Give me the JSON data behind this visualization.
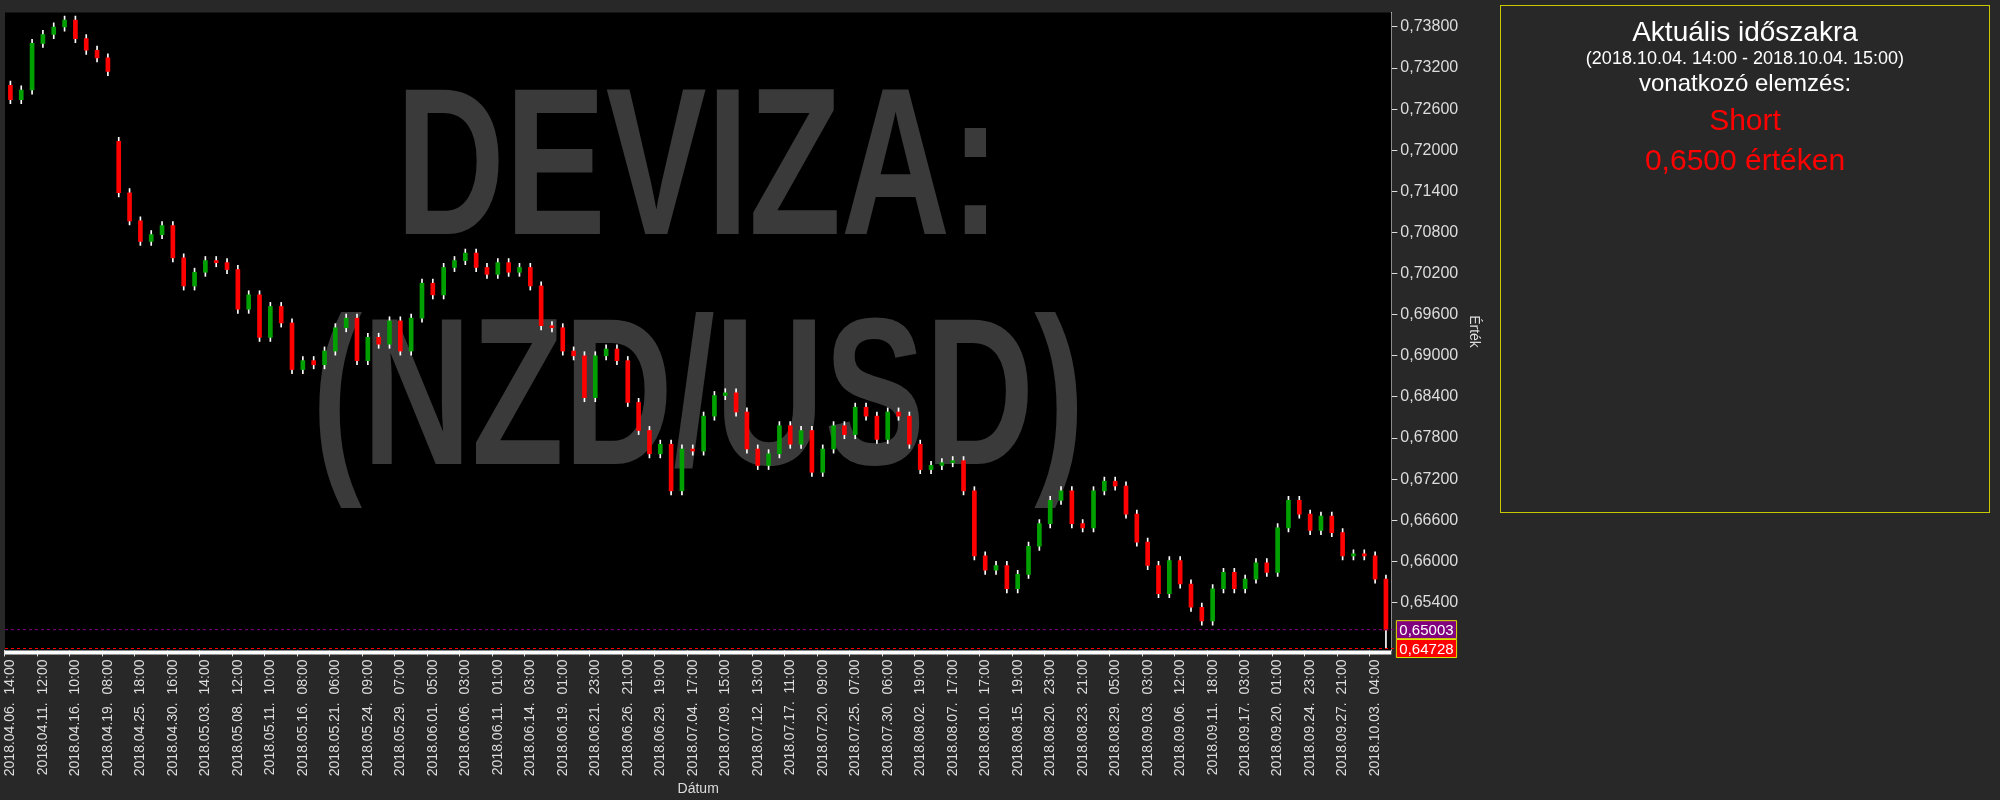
{
  "chart_data": [
    {
      "type": "candlestick",
      "title": "DEVIZA: (NZD/USD)",
      "xlabel": "Dátum",
      "ylabel": "Érték",
      "categories": [
        "2018.04.06.  14:00",
        null,
        null,
        "2018.04.11.  12:00",
        null,
        null,
        "2018.04.16.  10:00",
        null,
        null,
        "2018.04.19.  08:00",
        null,
        null,
        "2018.04.25.  18:00",
        null,
        null,
        "2018.04.30.  16:00",
        null,
        null,
        "2018.05.03.  14:00",
        null,
        null,
        "2018.05.08.  12:00",
        null,
        null,
        "2018.05.11.  10:00",
        null,
        null,
        "2018.05.16.  08:00",
        null,
        null,
        "2018.05.21.  06:00",
        null,
        null,
        "2018.05.24.  09:00",
        null,
        null,
        "2018.05.29.  07:00",
        null,
        null,
        "2018.06.01.  05:00",
        null,
        null,
        "2018.06.06.  03:00",
        null,
        null,
        "2018.06.11.  01:00",
        null,
        null,
        "2018.06.14.  03:00",
        null,
        null,
        "2018.06.19.  01:00",
        null,
        null,
        "2018.06.21.  23:00",
        null,
        null,
        "2018.06.26.  21:00",
        null,
        null,
        "2018.06.29.  19:00",
        null,
        null,
        "2018.07.04.  17:00",
        null,
        null,
        "2018.07.09.  15:00",
        null,
        null,
        "2018.07.12.  13:00",
        null,
        null,
        "2018.07.17.  11:00",
        null,
        null,
        "2018.07.20.  09:00",
        null,
        null,
        "2018.07.25.  07:00",
        null,
        null,
        "2018.07.30.  06:00",
        null,
        null,
        "2018.08.02.  19:00",
        null,
        null,
        "2018.08.07.  17:00",
        null,
        null,
        "2018.08.10.  17:00",
        null,
        null,
        "2018.08.15.  19:00",
        null,
        null,
        "2018.08.20.  23:00",
        null,
        null,
        "2018.08.23.  21:00",
        null,
        null,
        "2018.08.29.  05:00",
        null,
        null,
        "2018.09.03.  03:00",
        null,
        null,
        "2018.09.06.  12:00",
        null,
        null,
        "2018.09.11.  18:00",
        null,
        null,
        "2018.09.17.  03:00",
        null,
        null,
        "2018.09.20.  01:00",
        null,
        null,
        "2018.09.24.  23:00",
        null,
        null,
        "2018.09.27.  21:00",
        null,
        null,
        "2018.10.03.  04:00",
        null
      ],
      "colors": [
        "#ff0000",
        "#00a000",
        "#00a000",
        "#00a000",
        "#00a000",
        "#00a000",
        "#ff0000",
        "#ff0000",
        "#ff0000",
        "#ff0000",
        "#ff0000",
        "#ff0000",
        "#ff0000",
        "#00a000",
        "#00a000",
        "#ff0000",
        "#ff0000",
        "#00a000",
        "#00a000",
        "#ff0000",
        "#ff0000",
        "#ff0000",
        "#00a000",
        "#ff0000",
        "#00a000",
        "#ff0000",
        "#ff0000",
        "#00a000",
        "#ff0000",
        "#00a000",
        "#00a000",
        "#00a000",
        "#ff0000",
        "#00a000",
        "#ff0000",
        "#00a000",
        "#ff0000",
        "#00a000",
        "#00a000",
        "#ff0000",
        "#00a000",
        "#00a000",
        "#00a000",
        "#ff0000",
        "#ff0000",
        "#00a000",
        "#ff0000",
        "#00a000",
        "#ff0000",
        "#ff0000",
        "#ff0000",
        "#ff0000",
        "#ff0000",
        "#ff0000",
        "#00a000",
        "#00a000",
        "#ff0000",
        "#ff0000",
        "#ff0000",
        "#ff0000",
        "#00a000",
        "#ff0000",
        "#00a000",
        "#ff0000",
        "#00a000",
        "#00a000",
        "#00a000",
        "#ff0000",
        "#ff0000",
        "#ff0000",
        "#00a000",
        "#00a000",
        "#ff0000",
        "#00a000",
        "#ff0000",
        "#00a000",
        "#00a000",
        "#ff0000",
        "#00a000",
        "#ff0000",
        "#ff0000",
        "#00a000",
        "#ff0000",
        "#ff0000",
        "#ff0000",
        "#00a000",
        "#00a000",
        "#00a000",
        "#ff0000",
        "#ff0000",
        "#ff0000",
        "#00a000",
        "#ff0000",
        "#00a000",
        "#00a000",
        "#00a000",
        "#00a000",
        "#00a000",
        "#ff0000",
        "#ff0000",
        "#00a000",
        "#00a000",
        "#ff0000",
        "#ff0000",
        "#ff0000",
        "#ff0000",
        "#ff0000",
        "#00a000",
        "#ff0000",
        "#ff0000",
        "#ff0000",
        "#00a000",
        "#00a000",
        "#ff0000",
        "#00a000",
        "#00a000",
        "#ff0000",
        "#00a000",
        "#00a000",
        "#ff0000",
        "#ff0000",
        "#00a000",
        "#ff0000",
        "#ff0000",
        "#00a000",
        "#ff0000",
        "#ff0000",
        "#ff0000"
      ],
      "color": "#ffffff",
      "ohlc": [
        [
          0.7295,
          0.7301,
          0.7268,
          0.7274
        ],
        [
          0.7274,
          0.7294,
          0.7268,
          0.7288
        ],
        [
          0.7288,
          0.7362,
          0.7282,
          0.7356
        ],
        [
          0.7356,
          0.7375,
          0.735,
          0.7369
        ],
        [
          0.7369,
          0.7386,
          0.7363,
          0.738
        ],
        [
          0.738,
          0.7396,
          0.7374,
          0.739
        ],
        [
          0.739,
          0.7396,
          0.7357,
          0.7363
        ],
        [
          0.7363,
          0.7369,
          0.734,
          0.7346
        ],
        [
          0.7346,
          0.7352,
          0.7329,
          0.7335
        ],
        [
          0.7335,
          0.7341,
          0.7309,
          0.7315
        ],
        [
          0.7213,
          0.7219,
          0.7132,
          0.7138
        ],
        [
          0.7138,
          0.7144,
          0.7091,
          0.7097
        ],
        [
          0.7097,
          0.7103,
          0.7061,
          0.7067
        ],
        [
          0.7067,
          0.7083,
          0.7061,
          0.7077
        ],
        [
          0.7077,
          0.7096,
          0.7071,
          0.709
        ],
        [
          0.709,
          0.7096,
          0.7037,
          0.7043
        ],
        [
          0.7043,
          0.7049,
          0.6996,
          0.7002
        ],
        [
          0.7002,
          0.7028,
          0.6996,
          0.7022
        ],
        [
          0.7022,
          0.7045,
          0.7016,
          0.7039
        ],
        [
          0.7039,
          0.7045,
          0.703,
          0.7036
        ],
        [
          0.7036,
          0.7042,
          0.702,
          0.7026
        ],
        [
          0.7026,
          0.7032,
          0.6962,
          0.6968
        ],
        [
          0.6968,
          0.6995,
          0.6962,
          0.6989
        ],
        [
          0.6989,
          0.6995,
          0.6921,
          0.6927
        ],
        [
          0.6927,
          0.6978,
          0.6921,
          0.6972
        ],
        [
          0.6972,
          0.6978,
          0.6942,
          0.6948
        ],
        [
          0.6948,
          0.6954,
          0.6874,
          0.688
        ],
        [
          0.688,
          0.6899,
          0.6874,
          0.6893
        ],
        [
          0.6893,
          0.6899,
          0.6881,
          0.6887
        ],
        [
          0.6887,
          0.6913,
          0.6881,
          0.6907
        ],
        [
          0.6907,
          0.6947,
          0.6901,
          0.6941
        ],
        [
          0.6941,
          0.6961,
          0.6935,
          0.6955
        ],
        [
          0.6955,
          0.6961,
          0.6887,
          0.6893
        ],
        [
          0.6893,
          0.6933,
          0.6887,
          0.6927
        ],
        [
          0.6927,
          0.6933,
          0.6911,
          0.6917
        ],
        [
          0.6917,
          0.6957,
          0.6911,
          0.6951
        ],
        [
          0.6951,
          0.6957,
          0.6901,
          0.6907
        ],
        [
          0.6907,
          0.6961,
          0.6901,
          0.6955
        ],
        [
          0.6955,
          0.7012,
          0.6949,
          0.7006
        ],
        [
          0.7006,
          0.7012,
          0.6983,
          0.6989
        ],
        [
          0.6989,
          0.7035,
          0.6983,
          0.7029
        ],
        [
          0.7029,
          0.7045,
          0.7023,
          0.7039
        ],
        [
          0.7039,
          0.7056,
          0.7033,
          0.705
        ],
        [
          0.705,
          0.7056,
          0.7023,
          0.7029
        ],
        [
          0.7029,
          0.7035,
          0.7013,
          0.7019
        ],
        [
          0.7019,
          0.7042,
          0.7013,
          0.7036
        ],
        [
          0.7036,
          0.7042,
          0.7016,
          0.7022
        ],
        [
          0.7022,
          0.7035,
          0.7016,
          0.7029
        ],
        [
          0.7029,
          0.7035,
          0.6996,
          0.7002
        ],
        [
          0.7002,
          0.7008,
          0.6938,
          0.6944
        ],
        [
          0.6944,
          0.695,
          0.6935,
          0.6941
        ],
        [
          0.6941,
          0.6947,
          0.6901,
          0.6907
        ],
        [
          0.6907,
          0.6913,
          0.6894,
          0.69
        ],
        [
          0.69,
          0.6906,
          0.6833,
          0.6839
        ],
        [
          0.6839,
          0.6906,
          0.6833,
          0.69
        ],
        [
          0.69,
          0.6916,
          0.6894,
          0.691
        ],
        [
          0.691,
          0.6916,
          0.6887,
          0.6893
        ],
        [
          0.6893,
          0.6899,
          0.6826,
          0.6832
        ],
        [
          0.6832,
          0.6838,
          0.6785,
          0.6791
        ],
        [
          0.6791,
          0.6797,
          0.6751,
          0.6757
        ],
        [
          0.6757,
          0.6777,
          0.6751,
          0.6771
        ],
        [
          0.6771,
          0.6777,
          0.6697,
          0.6703
        ],
        [
          0.6703,
          0.677,
          0.6697,
          0.6764
        ],
        [
          0.6764,
          0.677,
          0.6755,
          0.6761
        ],
        [
          0.6761,
          0.6818,
          0.6755,
          0.6812
        ],
        [
          0.6812,
          0.6848,
          0.6806,
          0.6842
        ],
        [
          0.6842,
          0.6852,
          0.6836,
          0.6846
        ],
        [
          0.6846,
          0.6852,
          0.6812,
          0.6818
        ],
        [
          0.6818,
          0.6824,
          0.6758,
          0.6764
        ],
        [
          0.6764,
          0.677,
          0.6734,
          0.674
        ],
        [
          0.674,
          0.6763,
          0.6734,
          0.6757
        ],
        [
          0.6757,
          0.6804,
          0.6751,
          0.6798
        ],
        [
          0.6798,
          0.6804,
          0.6765,
          0.6771
        ],
        [
          0.6771,
          0.6797,
          0.6765,
          0.6791
        ],
        [
          0.6791,
          0.6797,
          0.6724,
          0.673
        ],
        [
          0.673,
          0.677,
          0.6724,
          0.6764
        ],
        [
          0.6764,
          0.6804,
          0.6758,
          0.6798
        ],
        [
          0.6798,
          0.6804,
          0.6779,
          0.6785
        ],
        [
          0.6785,
          0.6831,
          0.6779,
          0.6825
        ],
        [
          0.6825,
          0.6831,
          0.6806,
          0.6812
        ],
        [
          0.6812,
          0.6818,
          0.6772,
          0.6778
        ],
        [
          0.6778,
          0.6824,
          0.6772,
          0.6818
        ],
        [
          0.6818,
          0.6824,
          0.6806,
          0.6812
        ],
        [
          0.6812,
          0.6818,
          0.6765,
          0.6771
        ],
        [
          0.6771,
          0.6777,
          0.6728,
          0.6734
        ],
        [
          0.6734,
          0.6746,
          0.6728,
          0.674
        ],
        [
          0.674,
          0.675,
          0.6734,
          0.6744
        ],
        [
          0.6744,
          0.6753,
          0.6738,
          0.6747
        ],
        [
          0.6747,
          0.6753,
          0.6697,
          0.6703
        ],
        [
          0.6703,
          0.6709,
          0.6602,
          0.6608
        ],
        [
          0.6608,
          0.6614,
          0.6581,
          0.6587
        ],
        [
          0.6587,
          0.66,
          0.6581,
          0.6594
        ],
        [
          0.6594,
          0.66,
          0.6554,
          0.656
        ],
        [
          0.656,
          0.6587,
          0.6554,
          0.6581
        ],
        [
          0.6581,
          0.6628,
          0.6575,
          0.6622
        ],
        [
          0.6622,
          0.6661,
          0.6616,
          0.6655
        ],
        [
          0.6655,
          0.6695,
          0.6649,
          0.6689
        ],
        [
          0.6689,
          0.6709,
          0.6683,
          0.6703
        ],
        [
          0.6703,
          0.6709,
          0.6649,
          0.6655
        ],
        [
          0.6655,
          0.6661,
          0.6643,
          0.6649
        ],
        [
          0.6649,
          0.6709,
          0.6643,
          0.6703
        ],
        [
          0.6703,
          0.6723,
          0.6697,
          0.6717
        ],
        [
          0.6717,
          0.6723,
          0.6704,
          0.671
        ],
        [
          0.671,
          0.6716,
          0.6663,
          0.6669
        ],
        [
          0.6669,
          0.6675,
          0.6622,
          0.6628
        ],
        [
          0.6628,
          0.6634,
          0.6588,
          0.6594
        ],
        [
          0.6594,
          0.66,
          0.6547,
          0.6553
        ],
        [
          0.6553,
          0.6607,
          0.6547,
          0.6601
        ],
        [
          0.6601,
          0.6607,
          0.6561,
          0.6567
        ],
        [
          0.6567,
          0.6573,
          0.6527,
          0.6533
        ],
        [
          0.6533,
          0.6539,
          0.6507,
          0.6513
        ],
        [
          0.6513,
          0.6566,
          0.6507,
          0.656
        ],
        [
          0.656,
          0.659,
          0.6554,
          0.6584
        ],
        [
          0.6584,
          0.659,
          0.6554,
          0.656
        ],
        [
          0.656,
          0.658,
          0.6554,
          0.6574
        ],
        [
          0.6574,
          0.6604,
          0.6568,
          0.6598
        ],
        [
          0.6598,
          0.6604,
          0.6578,
          0.6584
        ],
        [
          0.6584,
          0.6655,
          0.6578,
          0.6649
        ],
        [
          0.6649,
          0.6695,
          0.6643,
          0.6689
        ],
        [
          0.6689,
          0.6695,
          0.6663,
          0.6669
        ],
        [
          0.6669,
          0.6675,
          0.6639,
          0.6645
        ],
        [
          0.6645,
          0.6672,
          0.6639,
          0.6666
        ],
        [
          0.6666,
          0.6672,
          0.6636,
          0.6642
        ],
        [
          0.6642,
          0.6648,
          0.6602,
          0.6608
        ],
        [
          0.6608,
          0.6617,
          0.6602,
          0.6611
        ],
        [
          0.6611,
          0.6617,
          0.6602,
          0.6608
        ],
        [
          0.6608,
          0.6614,
          0.6568,
          0.6574
        ],
        [
          0.6574,
          0.658,
          0.6473,
          0.65
        ]
      ],
      "ylim": [
        0.647,
        0.7401
      ],
      "yticks": [
        {
          "value": 0.654,
          "label": "0,65400"
        },
        {
          "value": 0.66,
          "label": "0,66000"
        },
        {
          "value": 0.666,
          "label": "0,66600"
        },
        {
          "value": 0.672,
          "label": "0,67200"
        },
        {
          "value": 0.678,
          "label": "0,67800"
        },
        {
          "value": 0.684,
          "label": "0,68400"
        },
        {
          "value": 0.69,
          "label": "0,69000"
        },
        {
          "value": 0.696,
          "label": "0,69600"
        },
        {
          "value": 0.702,
          "label": "0,70200"
        },
        {
          "value": 0.708,
          "label": "0,70800"
        },
        {
          "value": 0.714,
          "label": "0,71400"
        },
        {
          "value": 0.72,
          "label": "0,72000"
        },
        {
          "value": 0.726,
          "label": "0,72600"
        },
        {
          "value": 0.732,
          "label": "0,73200"
        },
        {
          "value": 0.738,
          "label": "0,73800"
        }
      ],
      "ref_lines": [
        {
          "axis": "y",
          "value": 0.65003,
          "label": "0,65003",
          "color": "#800080"
        },
        {
          "axis": "y",
          "value": 0.64728,
          "label": "0,64728",
          "color": "#ff0000"
        }
      ]
    },
    {
      "type": "other",
      "title": "Aktuális időszakra",
      "subtitle": "(2018.10.04. 14:00 - 2018.10.04. 15:00)",
      "color": "#ff0000",
      "annotations": [
        "vonatkozó elemzés:",
        "Short",
        "0,6500  értéken"
      ]
    }
  ]
}
